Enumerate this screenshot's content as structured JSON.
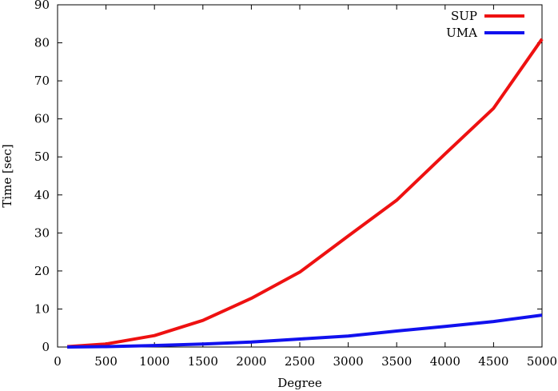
{
  "chart_data": {
    "type": "line",
    "title": "",
    "xlabel": "Degree",
    "ylabel": "Time [sec]",
    "xlim": [
      0,
      5000
    ],
    "ylim": [
      0,
      90
    ],
    "xticks": [
      0,
      500,
      1000,
      1500,
      2000,
      2500,
      3000,
      3500,
      4000,
      4500,
      5000
    ],
    "yticks": [
      0,
      10,
      20,
      30,
      40,
      50,
      60,
      70,
      80,
      90
    ],
    "grid": false,
    "legend_position": "top-right",
    "series": [
      {
        "name": "SUP",
        "color": "#ee1111",
        "x": [
          100,
          500,
          1000,
          1500,
          2000,
          2500,
          3000,
          3500,
          4000,
          4500,
          5000
        ],
        "y": [
          0.1,
          0.8,
          3.0,
          7.0,
          12.8,
          19.7,
          29.2,
          38.6,
          50.8,
          62.8,
          81.0
        ]
      },
      {
        "name": "UMA",
        "color": "#1111ee",
        "x": [
          100,
          500,
          1000,
          1500,
          2000,
          2500,
          3000,
          3500,
          4000,
          4500,
          5000
        ],
        "y": [
          0.0,
          0.1,
          0.4,
          0.8,
          1.3,
          2.1,
          2.9,
          4.2,
          5.4,
          6.7,
          8.4
        ]
      }
    ]
  }
}
